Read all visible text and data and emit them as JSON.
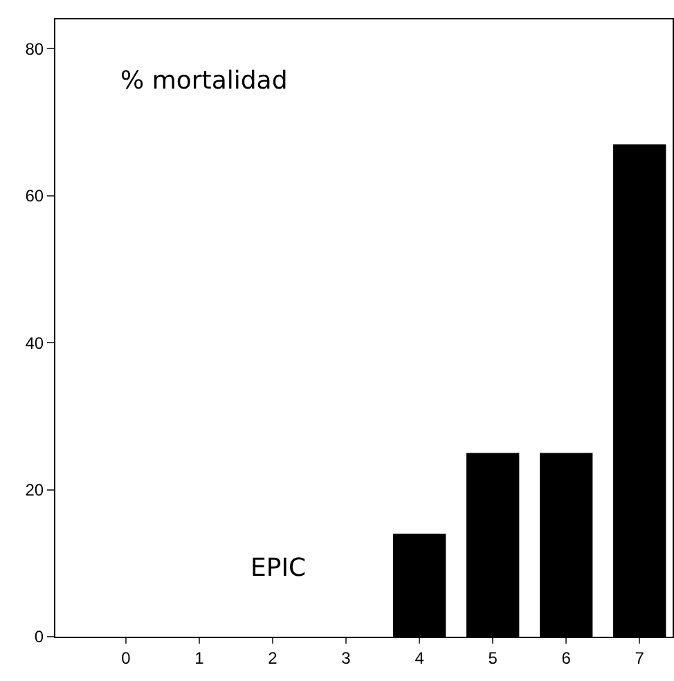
{
  "chart_data": {
    "type": "bar",
    "categories": [
      "0",
      "1",
      "2",
      "3",
      "4",
      "5",
      "6",
      "7"
    ],
    "values": [
      0,
      0,
      0,
      0,
      14,
      25,
      25,
      67
    ],
    "color": "#000000",
    "ylim": [
      0,
      84
    ],
    "yticks": [
      0,
      20,
      40,
      60,
      80
    ],
    "annotations": [
      "% mortalidad",
      "EPIC"
    ]
  }
}
